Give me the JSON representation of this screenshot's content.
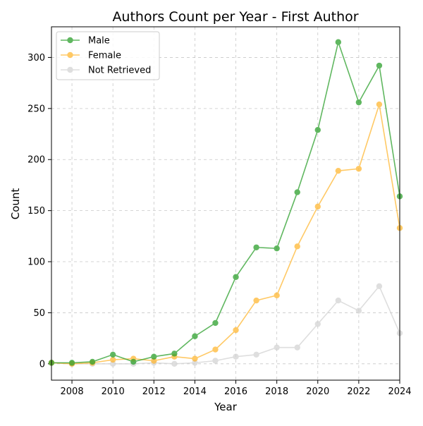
{
  "chart_data": {
    "type": "line",
    "title": "Authors Count per Year - First Author",
    "xlabel": "Year",
    "ylabel": "Count",
    "xlim": [
      2007,
      2024
    ],
    "ylim": [
      -16,
      330
    ],
    "xticks": [
      2008,
      2010,
      2012,
      2014,
      2016,
      2018,
      2020,
      2022,
      2024
    ],
    "yticks": [
      0,
      50,
      100,
      150,
      200,
      250,
      300
    ],
    "grid": true,
    "legend_position": "top-left",
    "x": [
      2007,
      2008,
      2009,
      2010,
      2011,
      2012,
      2013,
      2014,
      2015,
      2016,
      2017,
      2018,
      2019,
      2020,
      2021,
      2022,
      2023,
      2024
    ],
    "series": [
      {
        "name": "Male",
        "color": "#2ca02c",
        "values": [
          1,
          1,
          2,
          9,
          2,
          7,
          10,
          27,
          40,
          85,
          114,
          113,
          168,
          229,
          315,
          256,
          292,
          164
        ]
      },
      {
        "name": "Female",
        "color": "#ffb732",
        "values": [
          1,
          0,
          1,
          4,
          5,
          3,
          7,
          5,
          14,
          33,
          62,
          67,
          115,
          154,
          189,
          191,
          254,
          133
        ]
      },
      {
        "name": "Not Retrieved",
        "color": "#d3d3d3",
        "values": [
          1,
          0,
          0,
          0,
          0,
          1,
          0,
          1,
          3,
          7,
          9,
          16,
          16,
          39,
          62,
          52,
          76,
          30
        ]
      }
    ]
  }
}
